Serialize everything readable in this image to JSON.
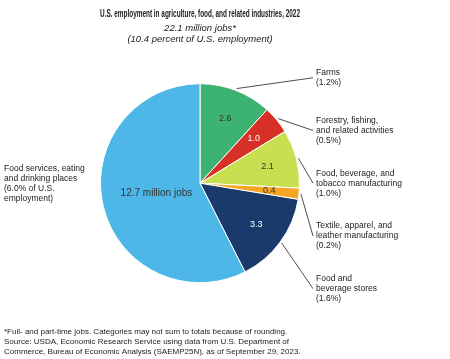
{
  "chart_data": {
    "type": "pie",
    "title": "U.S. employment in agriculture, food, and related industries, 2022",
    "subtitle": [
      "22.1 million jobs*",
      "(10.4 percent of U.S. employment)"
    ],
    "categories": [
      "Farms\n(1.2%)",
      "Forestry, fishing,\nand related activities\n(0.5%)",
      "Food, beverage, and\ntobacco manufacturing\n(1.0%)",
      "Textile, apparel, and\nleather manufacturing\n(0.2%)",
      "Food and\nbeverage stores\n(1.6%)",
      "Food services, eating\nand drinking places\n(6.0% of U.S.\nemployment)"
    ],
    "values": [
      2.6,
      1.0,
      2.1,
      0.4,
      3.3,
      12.7
    ],
    "value_labels": [
      "2.6",
      "1.0",
      "2.1",
      "0.4",
      "3.3",
      "12.7 million jobs"
    ],
    "colors": [
      "#3cb371",
      "#d73027",
      "#c8e050",
      "#f5a623",
      "#1a3a6b",
      "#4db8e8"
    ],
    "data_labels": true,
    "annotations": [
      "*Full- and part-time jobs. Categories may not sum to totals because of rounding.\nSource: USDA, Economic Research Service using data from U.S. Department of\nCommerce, Bureau of Economic Analysis (SAEMP25N), as of September 29, 2023."
    ]
  }
}
